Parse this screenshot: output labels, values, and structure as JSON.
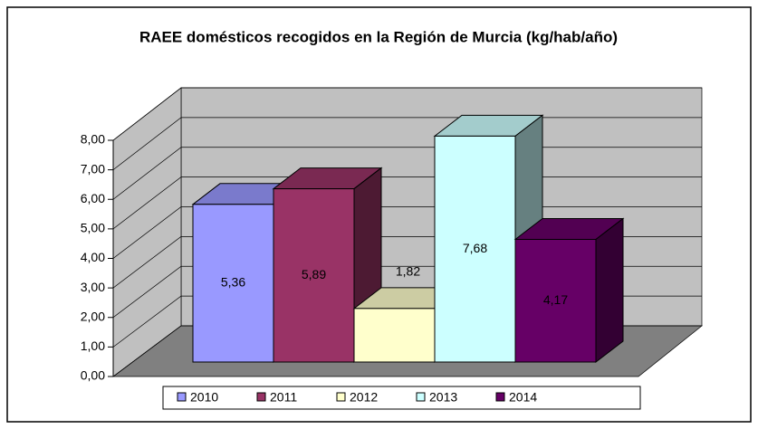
{
  "chart_data": {
    "type": "bar",
    "title": "RAEE domésticos recogidos en la Región de Murcia (kg/hab/año)",
    "series": [
      {
        "name": "2010",
        "color": "#9999ff",
        "values": [
          5.36
        ],
        "value_labels": [
          "5,36"
        ]
      },
      {
        "name": "2011",
        "color": "#993366",
        "values": [
          5.89
        ],
        "value_labels": [
          "5,89"
        ]
      },
      {
        "name": "2012",
        "color": "#ffffcc",
        "values": [
          1.82
        ],
        "value_labels": [
          "1,82"
        ]
      },
      {
        "name": "2013",
        "color": "#ccffff",
        "values": [
          7.68
        ],
        "value_labels": [
          "7,68"
        ]
      },
      {
        "name": "2014",
        "color": "#660066",
        "values": [
          4.17
        ],
        "value_labels": [
          "4,17"
        ]
      }
    ],
    "ylim": [
      0,
      8
    ],
    "yticks": [
      {
        "value": 0,
        "label": "0,00"
      },
      {
        "value": 1,
        "label": "1,00"
      },
      {
        "value": 2,
        "label": "2,00"
      },
      {
        "value": 3,
        "label": "3,00"
      },
      {
        "value": 4,
        "label": "4,00"
      },
      {
        "value": 5,
        "label": "5,00"
      },
      {
        "value": 6,
        "label": "6,00"
      },
      {
        "value": 7,
        "label": "7,00"
      },
      {
        "value": 8,
        "label": "8,00"
      }
    ],
    "grid": true,
    "legend": "bottom"
  }
}
